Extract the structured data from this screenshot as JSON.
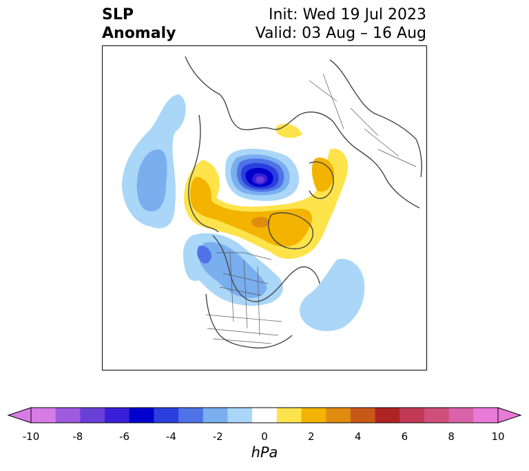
{
  "title": {
    "left_line1": "SLP",
    "left_line2": "Anomaly",
    "right_line1": "Init: Wed 19 Jul 2023",
    "right_line2": "Valid: 03 Aug – 16 Aug"
  },
  "colorbar": {
    "units": "hPa",
    "tick_labels": [
      "-10",
      "-8",
      "-6",
      "-4",
      "-2",
      "0",
      "2",
      "4",
      "6",
      "8",
      "10"
    ],
    "colors": [
      "#d77be6",
      "#a05ae0",
      "#6a3fd8",
      "#3a1fd8",
      "#0000cc",
      "#2a3fde",
      "#4f73e6",
      "#79aeef",
      "#aad6f8",
      "#ffffff",
      "#fee34a",
      "#f3b300",
      "#e08c0e",
      "#c85a18",
      "#b02323",
      "#c23a55",
      "#cf4f7a",
      "#d963a8",
      "#e97ad9"
    ],
    "extend_low_color": "#d77be6",
    "extend_high_color": "#e97ad9"
  },
  "map": {
    "projection": "polar stereographic (north pole)",
    "variable": "sea level pressure anomaly",
    "features": [
      "negative anomaly center over Arctic near North Pole (blue to purple)",
      "positive anomaly band over Greenland/Baffin and northern Scandinavia-Barents (yellow/orange)",
      "negative anomalies over North Pacific, western Canada and central North America (light blue)",
      "negative anomaly over western North Atlantic (light blue)"
    ]
  }
}
